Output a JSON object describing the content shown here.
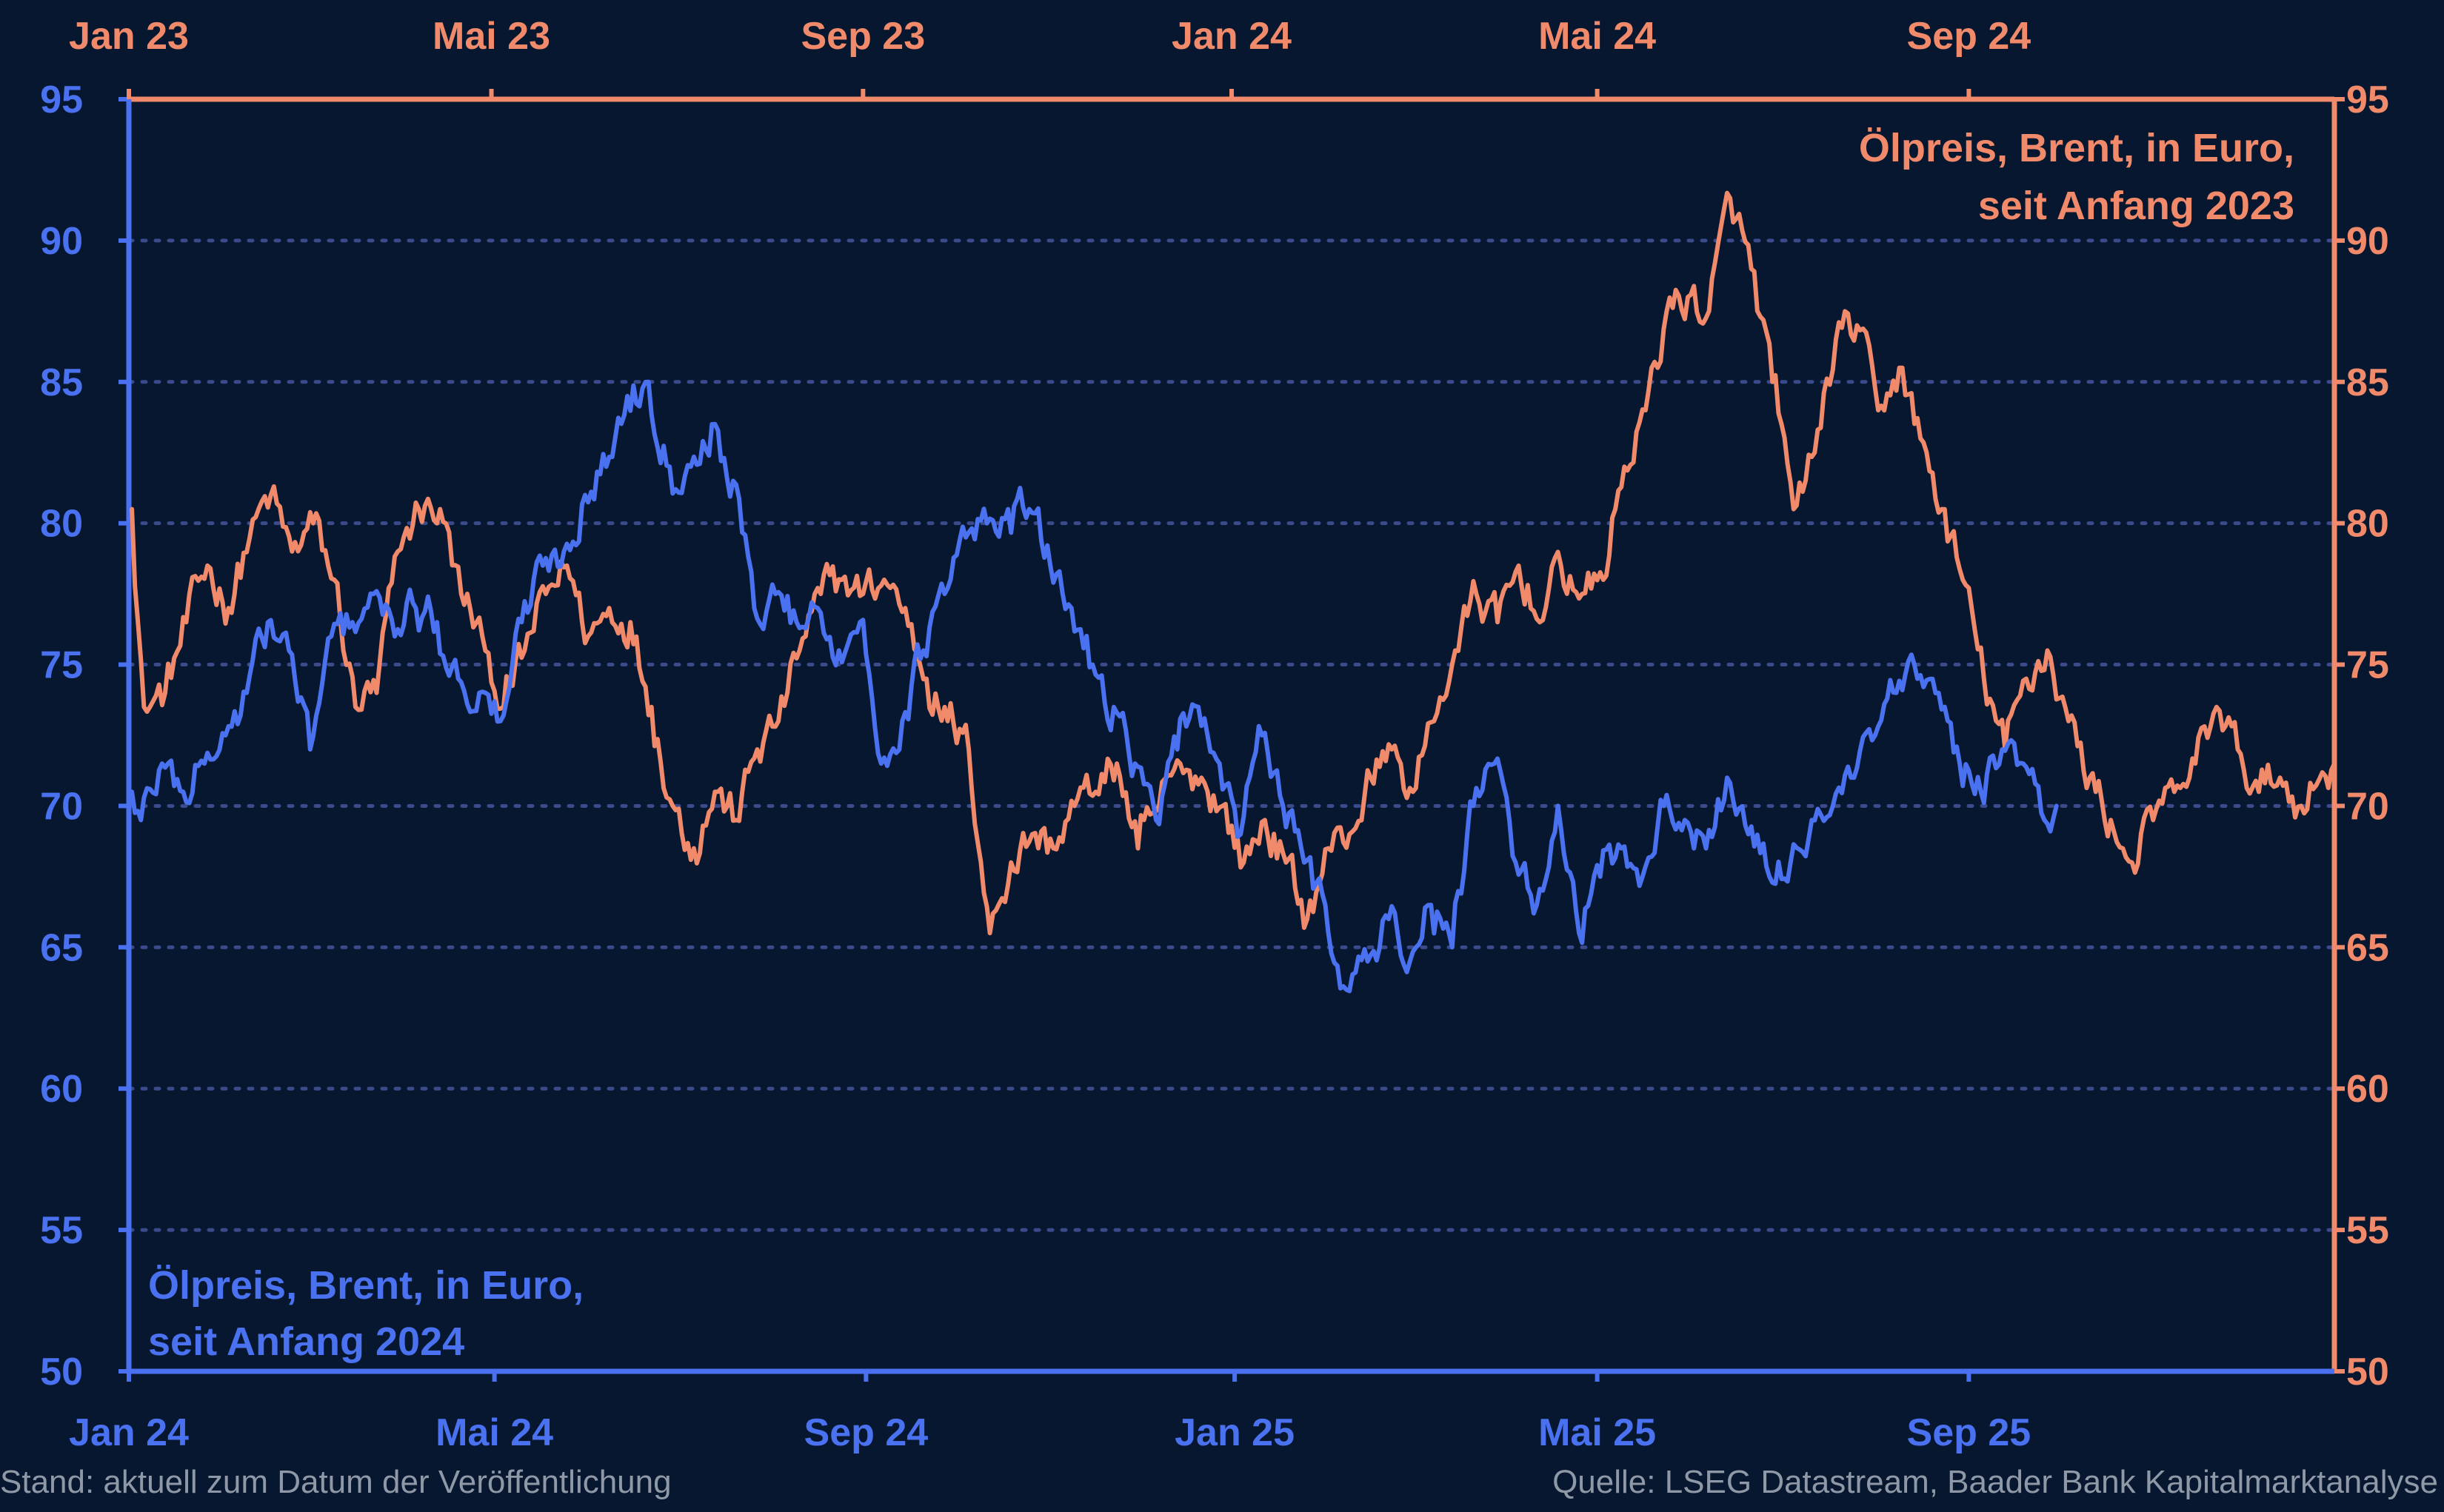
{
  "chart_data": {
    "type": "line",
    "ylim": [
      50,
      95
    ],
    "y_ticks": [
      "95",
      "90",
      "85",
      "80",
      "75",
      "70",
      "65",
      "60",
      "55",
      "50"
    ],
    "grid": "horizontal dotted",
    "top_axis_labels": [
      "Jan 23",
      "Mai 23",
      "Sep 23",
      "Jan 24",
      "Mai 24",
      "Sep 24"
    ],
    "bottom_axis_labels": [
      "Jan 24",
      "Mai 24",
      "Sep 24",
      "Jan 25",
      "Mai 25",
      "Sep 25"
    ],
    "series": [
      {
        "name": "Ölpreis, Brent, in Euro, seit Anfang 2023",
        "name_lines": [
          "Ölpreis, Brent, in Euro,",
          "seit Anfang 2023"
        ],
        "color": "#f08a6a",
        "axis": "right / top",
        "x_start": "2023-01-02",
        "x_end": "2024-12-31",
        "points": [
          [
            "2023-01-02",
            80.5
          ],
          [
            "2023-01-06",
            73.5
          ],
          [
            "2023-01-13",
            74.0
          ],
          [
            "2023-01-20",
            76.5
          ],
          [
            "2023-01-27",
            78.5
          ],
          [
            "2023-02-03",
            77.0
          ],
          [
            "2023-02-10",
            79.5
          ],
          [
            "2023-02-17",
            81.0
          ],
          [
            "2023-02-24",
            79.0
          ],
          [
            "2023-03-03",
            80.0
          ],
          [
            "2023-03-10",
            78.0
          ],
          [
            "2023-03-17",
            73.5
          ],
          [
            "2023-03-24",
            74.0
          ],
          [
            "2023-03-31",
            79.0
          ],
          [
            "2023-04-07",
            80.5
          ],
          [
            "2023-04-14",
            80.5
          ],
          [
            "2023-04-21",
            77.5
          ],
          [
            "2023-04-28",
            76.0
          ],
          [
            "2023-05-05",
            73.5
          ],
          [
            "2023-05-12",
            75.5
          ],
          [
            "2023-05-19",
            77.5
          ],
          [
            "2023-05-26",
            78.5
          ],
          [
            "2023-06-02",
            76.0
          ],
          [
            "2023-06-09",
            77.0
          ],
          [
            "2023-06-16",
            76.5
          ],
          [
            "2023-06-23",
            73.5
          ],
          [
            "2023-06-30",
            70.0
          ],
          [
            "2023-07-07",
            68.5
          ],
          [
            "2023-07-14",
            70.5
          ],
          [
            "2023-07-21",
            69.5
          ],
          [
            "2023-07-28",
            72.0
          ],
          [
            "2023-08-04",
            73.0
          ],
          [
            "2023-08-11",
            75.5
          ],
          [
            "2023-08-18",
            77.5
          ],
          [
            "2023-08-25",
            78.0
          ],
          [
            "2023-09-01",
            77.5
          ],
          [
            "2023-09-08",
            78.0
          ],
          [
            "2023-09-15",
            77.0
          ],
          [
            "2023-09-22",
            74.5
          ],
          [
            "2023-09-29",
            73.0
          ],
          [
            "2023-10-06",
            72.0
          ],
          [
            "2023-10-13",
            65.5
          ],
          [
            "2023-10-20",
            68.0
          ],
          [
            "2023-10-27",
            69.0
          ],
          [
            "2023-11-03",
            68.5
          ],
          [
            "2023-11-10",
            70.0
          ],
          [
            "2023-11-17",
            70.5
          ],
          [
            "2023-11-24",
            71.5
          ],
          [
            "2023-12-01",
            68.5
          ],
          [
            "2023-12-08",
            70.0
          ],
          [
            "2023-12-15",
            71.5
          ],
          [
            "2023-12-22",
            71.0
          ],
          [
            "2023-12-29",
            70.0
          ],
          [
            "2024-01-05",
            68.0
          ],
          [
            "2024-01-12",
            69.5
          ],
          [
            "2024-01-19",
            68.0
          ],
          [
            "2024-01-26",
            66.0
          ],
          [
            "2024-02-02",
            68.5
          ],
          [
            "2024-02-09",
            69.0
          ],
          [
            "2024-02-16",
            71.0
          ],
          [
            "2024-02-23",
            72.0
          ],
          [
            "2024-03-01",
            70.5
          ],
          [
            "2024-03-08",
            73.0
          ],
          [
            "2024-03-15",
            75.5
          ],
          [
            "2024-03-22",
            77.5
          ],
          [
            "2024-03-29",
            76.5
          ],
          [
            "2024-04-05",
            78.5
          ],
          [
            "2024-04-12",
            76.5
          ],
          [
            "2024-04-19",
            78.5
          ],
          [
            "2024-04-26",
            77.5
          ],
          [
            "2024-05-03",
            78.0
          ],
          [
            "2024-05-10",
            82.0
          ],
          [
            "2024-05-17",
            84.0
          ],
          [
            "2024-05-24",
            87.5
          ],
          [
            "2024-05-31",
            88.0
          ],
          [
            "2024-06-07",
            87.5
          ],
          [
            "2024-06-14",
            91.5
          ],
          [
            "2024-06-21",
            89.0
          ],
          [
            "2024-06-28",
            85.0
          ],
          [
            "2024-07-05",
            80.5
          ],
          [
            "2024-07-12",
            82.5
          ],
          [
            "2024-07-19",
            86.5
          ],
          [
            "2024-07-26",
            87.0
          ],
          [
            "2024-08-02",
            84.0
          ],
          [
            "2024-08-09",
            85.5
          ],
          [
            "2024-08-16",
            83.0
          ],
          [
            "2024-08-23",
            80.5
          ],
          [
            "2024-08-30",
            78.0
          ],
          [
            "2024-09-06",
            74.5
          ],
          [
            "2024-09-13",
            72.0
          ],
          [
            "2024-09-20",
            74.5
          ],
          [
            "2024-09-27",
            75.5
          ],
          [
            "2024-10-04",
            73.0
          ],
          [
            "2024-10-11",
            71.0
          ],
          [
            "2024-10-18",
            69.5
          ],
          [
            "2024-10-25",
            68.0
          ],
          [
            "2024-11-01",
            69.5
          ],
          [
            "2024-11-08",
            70.5
          ],
          [
            "2024-11-15",
            71.5
          ],
          [
            "2024-11-22",
            73.5
          ],
          [
            "2024-11-29",
            72.0
          ],
          [
            "2024-12-06",
            70.5
          ],
          [
            "2024-12-13",
            71.0
          ],
          [
            "2024-12-20",
            70.0
          ],
          [
            "2024-12-31",
            71.5
          ]
        ]
      },
      {
        "name": "Ölpreis, Brent, in Euro, seit Anfang 2024",
        "name_lines": [
          "Ölpreis, Brent, in Euro,",
          "seit Anfang 2024"
        ],
        "color": "#4a72f0",
        "axis": "left / bottom",
        "x_start": "2024-01-02",
        "x_end": "2025-09-30",
        "points": [
          [
            "2024-01-02",
            70.5
          ],
          [
            "2024-01-05",
            69.5
          ],
          [
            "2024-01-12",
            71.5
          ],
          [
            "2024-01-19",
            70.5
          ],
          [
            "2024-01-26",
            71.5
          ],
          [
            "2024-02-02",
            72.5
          ],
          [
            "2024-02-09",
            74.0
          ],
          [
            "2024-02-16",
            76.5
          ],
          [
            "2024-02-23",
            75.5
          ],
          [
            "2024-03-01",
            72.0
          ],
          [
            "2024-03-08",
            76.0
          ],
          [
            "2024-03-15",
            76.5
          ],
          [
            "2024-03-22",
            77.5
          ],
          [
            "2024-03-29",
            76.0
          ],
          [
            "2024-04-05",
            77.0
          ],
          [
            "2024-04-12",
            76.5
          ],
          [
            "2024-04-19",
            74.5
          ],
          [
            "2024-04-26",
            74.0
          ],
          [
            "2024-05-03",
            73.0
          ],
          [
            "2024-05-10",
            76.5
          ],
          [
            "2024-05-17",
            78.5
          ],
          [
            "2024-05-24",
            79.0
          ],
          [
            "2024-05-31",
            81.0
          ],
          [
            "2024-06-07",
            82.0
          ],
          [
            "2024-06-14",
            84.5
          ],
          [
            "2024-06-21",
            85.0
          ],
          [
            "2024-06-28",
            82.0
          ],
          [
            "2024-07-05",
            82.0
          ],
          [
            "2024-07-12",
            83.5
          ],
          [
            "2024-07-19",
            81.5
          ],
          [
            "2024-07-26",
            77.0
          ],
          [
            "2024-08-02",
            77.5
          ],
          [
            "2024-08-09",
            76.5
          ],
          [
            "2024-08-16",
            77.0
          ],
          [
            "2024-08-23",
            75.5
          ],
          [
            "2024-08-30",
            76.5
          ],
          [
            "2024-09-06",
            71.5
          ],
          [
            "2024-09-13",
            73.0
          ],
          [
            "2024-09-20",
            75.5
          ],
          [
            "2024-09-27",
            77.5
          ],
          [
            "2024-10-04",
            79.5
          ],
          [
            "2024-10-11",
            80.0
          ],
          [
            "2024-10-18",
            80.5
          ],
          [
            "2024-10-25",
            80.5
          ],
          [
            "2024-11-01",
            78.5
          ],
          [
            "2024-11-08",
            77.0
          ],
          [
            "2024-11-15",
            75.0
          ],
          [
            "2024-11-22",
            73.5
          ],
          [
            "2024-11-29",
            71.5
          ],
          [
            "2024-12-06",
            69.5
          ],
          [
            "2024-12-13",
            72.0
          ],
          [
            "2024-12-20",
            73.5
          ],
          [
            "2024-12-27",
            71.5
          ],
          [
            "2025-01-03",
            69.0
          ],
          [
            "2025-01-10",
            72.5
          ],
          [
            "2025-01-17",
            70.0
          ],
          [
            "2025-01-24",
            68.0
          ],
          [
            "2025-01-31",
            66.5
          ],
          [
            "2025-02-07",
            63.5
          ],
          [
            "2025-02-14",
            64.5
          ],
          [
            "2025-02-21",
            66.0
          ],
          [
            "2025-02-28",
            64.5
          ],
          [
            "2025-03-07",
            66.5
          ],
          [
            "2025-03-14",
            65.0
          ],
          [
            "2025-03-21",
            70.0
          ],
          [
            "2025-03-28",
            71.5
          ],
          [
            "2025-04-04",
            68.0
          ],
          [
            "2025-04-11",
            66.5
          ],
          [
            "2025-04-18",
            70.0
          ],
          [
            "2025-04-25",
            65.5
          ],
          [
            "2025-05-02",
            67.5
          ],
          [
            "2025-05-09",
            68.5
          ],
          [
            "2025-05-16",
            67.5
          ],
          [
            "2025-05-23",
            70.0
          ],
          [
            "2025-05-30",
            69.5
          ],
          [
            "2025-06-06",
            68.5
          ],
          [
            "2025-06-13",
            71.0
          ],
          [
            "2025-06-20",
            69.0
          ],
          [
            "2025-06-27",
            67.5
          ],
          [
            "2025-07-04",
            68.0
          ],
          [
            "2025-07-11",
            69.5
          ],
          [
            "2025-07-18",
            70.0
          ],
          [
            "2025-07-25",
            71.0
          ],
          [
            "2025-08-01",
            72.5
          ],
          [
            "2025-08-08",
            74.0
          ],
          [
            "2025-08-15",
            74.5
          ],
          [
            "2025-08-22",
            74.0
          ],
          [
            "2025-08-29",
            71.5
          ],
          [
            "2025-09-05",
            70.5
          ],
          [
            "2025-09-12",
            72.0
          ],
          [
            "2025-09-19",
            71.5
          ],
          [
            "2025-09-26",
            69.5
          ],
          [
            "2025-09-30",
            70.0
          ]
        ]
      }
    ]
  },
  "footer": {
    "left": "Stand: aktuell zum Datum der Veröffentlichung",
    "right": "Quelle: LSEG Datastream, Baader Bank Kapitalmarktanalyse"
  }
}
